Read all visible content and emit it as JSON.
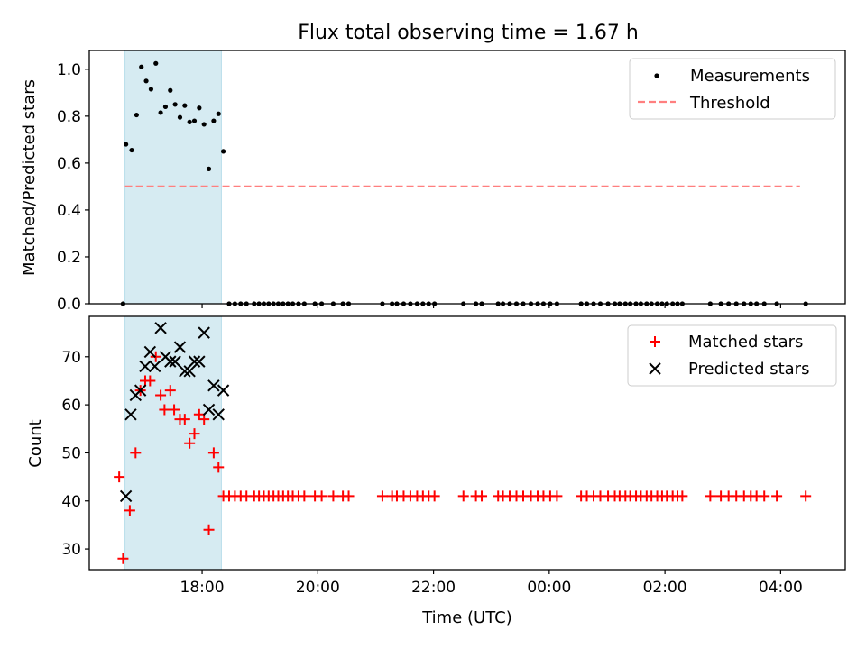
{
  "title": "Flux total observing time = 1.67 h",
  "colors": {
    "measurement": "#000000",
    "threshold": "#ff7f7f",
    "matched": "#ff0000",
    "predicted": "#000000",
    "highlight": "#add8e6"
  },
  "chart_data": [
    {
      "type": "scatter",
      "panel": "top",
      "ylabel": "Matched/Predicted stars",
      "xlabel": "",
      "ylim": [
        0,
        1.08
      ],
      "yticks": [
        0,
        0.2,
        0.4,
        0.6,
        0.8,
        1.0
      ],
      "ytick_labels": [
        "0.0",
        "0.2",
        "0.4",
        "0.6",
        "0.8",
        "1.0"
      ],
      "legend": {
        "placement": "top-right",
        "entries": [
          "Measurements",
          "Threshold"
        ]
      },
      "threshold": {
        "name": "Threshold",
        "y": 0.5,
        "x_start": "16:40",
        "x_end": "04:20"
      },
      "highlight_span": [
        "16:40",
        "18:20"
      ],
      "series": [
        {
          "name": "Measurements",
          "marker": "dot",
          "points": [
            [
              "16:38",
              0.0
            ],
            [
              "16:41",
              0.68
            ],
            [
              "16:47",
              0.655
            ],
            [
              "16:52",
              0.805
            ],
            [
              "16:57",
              1.01
            ],
            [
              "17:02",
              0.95
            ],
            [
              "17:07",
              0.915
            ],
            [
              "17:12",
              1.025
            ],
            [
              "17:17",
              0.815
            ],
            [
              "17:22",
              0.84
            ],
            [
              "17:27",
              0.91
            ],
            [
              "17:32",
              0.85
            ],
            [
              "17:37",
              0.795
            ],
            [
              "17:42",
              0.845
            ],
            [
              "17:47",
              0.775
            ],
            [
              "17:52",
              0.78
            ],
            [
              "17:57",
              0.835
            ],
            [
              "18:02",
              0.765
            ],
            [
              "18:07",
              0.575
            ],
            [
              "18:12",
              0.78
            ],
            [
              "18:17",
              0.81
            ],
            [
              "18:22",
              0.65
            ],
            [
              "18:28",
              0.0
            ],
            [
              "18:34",
              0.0
            ],
            [
              "18:40",
              0.0
            ],
            [
              "18:46",
              0.0
            ],
            [
              "18:54",
              0.0
            ],
            [
              "18:59",
              0.0
            ],
            [
              "19:04",
              0.0
            ],
            [
              "19:09",
              0.0
            ],
            [
              "19:14",
              0.0
            ],
            [
              "19:19",
              0.0
            ],
            [
              "19:24",
              0.0
            ],
            [
              "19:29",
              0.0
            ],
            [
              "19:34",
              0.0
            ],
            [
              "19:40",
              0.0
            ],
            [
              "19:46",
              0.0
            ],
            [
              "19:57",
              0.0
            ],
            [
              "20:04",
              0.0
            ],
            [
              "20:16",
              0.0
            ],
            [
              "20:26",
              0.0
            ],
            [
              "20:32",
              0.0
            ],
            [
              "21:07",
              0.0
            ],
            [
              "21:17",
              0.0
            ],
            [
              "21:22",
              0.0
            ],
            [
              "21:29",
              0.0
            ],
            [
              "21:36",
              0.0
            ],
            [
              "21:43",
              0.0
            ],
            [
              "21:49",
              0.0
            ],
            [
              "21:55",
              0.0
            ],
            [
              "22:01",
              0.0
            ],
            [
              "22:31",
              0.0
            ],
            [
              "22:44",
              0.0
            ],
            [
              "22:50",
              0.0
            ],
            [
              "23:07",
              0.0
            ],
            [
              "23:12",
              0.0
            ],
            [
              "23:19",
              0.0
            ],
            [
              "23:26",
              0.0
            ],
            [
              "23:33",
              0.0
            ],
            [
              "23:41",
              0.0
            ],
            [
              "23:48",
              0.0
            ],
            [
              "23:54",
              0.0
            ],
            [
              "00:01",
              0.0
            ],
            [
              "00:08",
              0.0
            ],
            [
              "00:33",
              0.0
            ],
            [
              "00:39",
              0.0
            ],
            [
              "00:46",
              0.0
            ],
            [
              "00:53",
              0.0
            ],
            [
              "01:01",
              0.0
            ],
            [
              "01:08",
              0.0
            ],
            [
              "01:13",
              0.0
            ],
            [
              "01:19",
              0.0
            ],
            [
              "01:24",
              0.0
            ],
            [
              "01:30",
              0.0
            ],
            [
              "01:35",
              0.0
            ],
            [
              "01:41",
              0.0
            ],
            [
              "01:46",
              0.0
            ],
            [
              "01:52",
              0.0
            ],
            [
              "01:57",
              0.0
            ],
            [
              "02:02",
              0.0
            ],
            [
              "02:08",
              0.0
            ],
            [
              "02:13",
              0.0
            ],
            [
              "02:18",
              0.0
            ],
            [
              "02:47",
              0.0
            ],
            [
              "02:58",
              0.0
            ],
            [
              "03:06",
              0.0
            ],
            [
              "03:14",
              0.0
            ],
            [
              "03:22",
              0.0
            ],
            [
              "03:29",
              0.0
            ],
            [
              "03:35",
              0.0
            ],
            [
              "03:43",
              0.0
            ],
            [
              "03:56",
              0.0
            ],
            [
              "04:26",
              0.0
            ]
          ]
        }
      ]
    },
    {
      "type": "scatter",
      "panel": "bottom",
      "ylabel": "Count",
      "xlabel": "Time (UTC)",
      "ylim": [
        25.7,
        78.4
      ],
      "yticks": [
        30,
        40,
        50,
        60,
        70
      ],
      "ytick_labels": [
        "30",
        "40",
        "50",
        "60",
        "70"
      ],
      "xlim": [
        "16:03",
        "05:07"
      ],
      "xticks": [
        "18:00",
        "20:00",
        "22:00",
        "00:00",
        "02:00",
        "04:00"
      ],
      "legend": {
        "placement": "top-right",
        "entries": [
          "Matched stars",
          "Predicted stars"
        ]
      },
      "highlight_span": [
        "16:40",
        "18:20"
      ],
      "series": [
        {
          "name": "Matched stars",
          "marker": "plus",
          "points": [
            [
              "16:34",
              45
            ],
            [
              "16:38",
              28
            ],
            [
              "16:45",
              38
            ],
            [
              "16:51",
              50
            ],
            [
              "16:56",
              63
            ],
            [
              "17:01",
              65
            ],
            [
              "17:06",
              65
            ],
            [
              "17:12",
              70
            ],
            [
              "17:17",
              62
            ],
            [
              "17:21",
              59
            ],
            [
              "17:27",
              63
            ],
            [
              "17:31",
              59
            ],
            [
              "17:37",
              57
            ],
            [
              "17:42",
              57
            ],
            [
              "17:47",
              52
            ],
            [
              "17:52",
              54
            ],
            [
              "17:57",
              58
            ],
            [
              "18:02",
              57
            ],
            [
              "18:07",
              34
            ],
            [
              "18:12",
              50
            ],
            [
              "18:17",
              47
            ],
            [
              "18:22",
              41
            ],
            [
              "18:28",
              41
            ],
            [
              "18:34",
              41
            ],
            [
              "18:40",
              41
            ],
            [
              "18:46",
              41
            ],
            [
              "18:54",
              41
            ],
            [
              "18:59",
              41
            ],
            [
              "19:04",
              41
            ],
            [
              "19:09",
              41
            ],
            [
              "19:14",
              41
            ],
            [
              "19:19",
              41
            ],
            [
              "19:24",
              41
            ],
            [
              "19:29",
              41
            ],
            [
              "19:34",
              41
            ],
            [
              "19:40",
              41
            ],
            [
              "19:46",
              41
            ],
            [
              "19:57",
              41
            ],
            [
              "20:04",
              41
            ],
            [
              "20:16",
              41
            ],
            [
              "20:26",
              41
            ],
            [
              "20:32",
              41
            ],
            [
              "21:07",
              41
            ],
            [
              "21:17",
              41
            ],
            [
              "21:22",
              41
            ],
            [
              "21:29",
              41
            ],
            [
              "21:36",
              41
            ],
            [
              "21:43",
              41
            ],
            [
              "21:49",
              41
            ],
            [
              "21:55",
              41
            ],
            [
              "22:01",
              41
            ],
            [
              "22:31",
              41
            ],
            [
              "22:44",
              41
            ],
            [
              "22:50",
              41
            ],
            [
              "23:07",
              41
            ],
            [
              "23:12",
              41
            ],
            [
              "23:19",
              41
            ],
            [
              "23:26",
              41
            ],
            [
              "23:33",
              41
            ],
            [
              "23:41",
              41
            ],
            [
              "23:48",
              41
            ],
            [
              "23:54",
              41
            ],
            [
              "00:01",
              41
            ],
            [
              "00:08",
              41
            ],
            [
              "00:33",
              41
            ],
            [
              "00:39",
              41
            ],
            [
              "00:46",
              41
            ],
            [
              "00:53",
              41
            ],
            [
              "01:01",
              41
            ],
            [
              "01:08",
              41
            ],
            [
              "01:13",
              41
            ],
            [
              "01:19",
              41
            ],
            [
              "01:24",
              41
            ],
            [
              "01:30",
              41
            ],
            [
              "01:35",
              41
            ],
            [
              "01:41",
              41
            ],
            [
              "01:46",
              41
            ],
            [
              "01:52",
              41
            ],
            [
              "01:57",
              41
            ],
            [
              "02:02",
              41
            ],
            [
              "02:08",
              41
            ],
            [
              "02:13",
              41
            ],
            [
              "02:18",
              41
            ],
            [
              "02:47",
              41
            ],
            [
              "02:58",
              41
            ],
            [
              "03:06",
              41
            ],
            [
              "03:14",
              41
            ],
            [
              "03:22",
              41
            ],
            [
              "03:29",
              41
            ],
            [
              "03:35",
              41
            ],
            [
              "03:43",
              41
            ],
            [
              "03:56",
              41
            ],
            [
              "04:26",
              41
            ]
          ]
        },
        {
          "name": "Predicted stars",
          "marker": "x",
          "points": [
            [
              "16:41",
              41
            ],
            [
              "16:46",
              58
            ],
            [
              "16:51",
              62
            ],
            [
              "16:56",
              63
            ],
            [
              "17:01",
              68
            ],
            [
              "17:06",
              71
            ],
            [
              "17:11",
              68
            ],
            [
              "17:17",
              76
            ],
            [
              "17:22",
              70
            ],
            [
              "17:27",
              69
            ],
            [
              "17:32",
              69
            ],
            [
              "17:37",
              72
            ],
            [
              "17:42",
              67
            ],
            [
              "17:47",
              67
            ],
            [
              "17:52",
              69
            ],
            [
              "17:57",
              69
            ],
            [
              "18:02",
              75
            ],
            [
              "18:07",
              59
            ],
            [
              "18:12",
              64
            ],
            [
              "18:17",
              58
            ],
            [
              "18:22",
              63
            ]
          ]
        }
      ]
    }
  ]
}
